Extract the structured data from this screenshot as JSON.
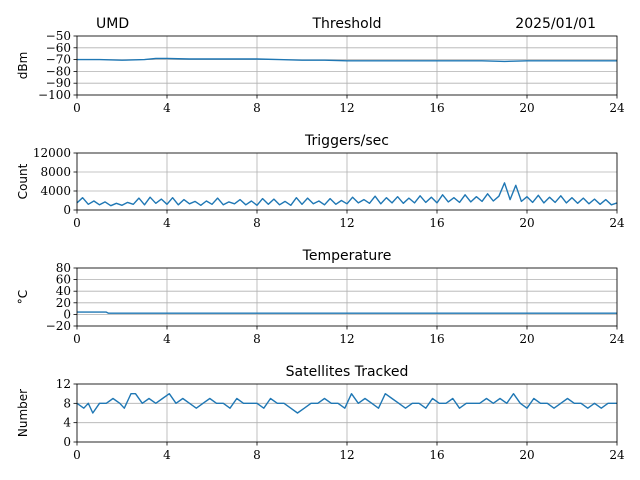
{
  "header": {
    "left": "UMD",
    "right": "2025/01/01"
  },
  "colors": {
    "series": "#1f77b4",
    "grid": "#b0b0b0"
  },
  "chart_data": [
    {
      "type": "line",
      "title": "Threshold",
      "ylabel": "dBm",
      "xlim": [
        0,
        24
      ],
      "ylim": [
        -100,
        -50
      ],
      "xticks": [
        0,
        4,
        8,
        12,
        16,
        20,
        24
      ],
      "yticks": [
        -100,
        -90,
        -80,
        -70,
        -60,
        -50
      ],
      "ytick_labels": [
        "−100",
        "−90",
        "−80",
        "−70",
        "−60",
        "−50"
      ],
      "grid": true,
      "series": [
        {
          "x": [
            0,
            1,
            2,
            3,
            3.5,
            4,
            5,
            6,
            7,
            8,
            9,
            10,
            11,
            12,
            13,
            14,
            15,
            16,
            17,
            18,
            19,
            20,
            21,
            22,
            23,
            24
          ],
          "values": [
            -70,
            -70,
            -70.5,
            -70,
            -69,
            -69,
            -69.5,
            -69.5,
            -69.5,
            -69.5,
            -70,
            -70.5,
            -70.5,
            -71,
            -71,
            -71,
            -71,
            -71,
            -71,
            -71,
            -71.5,
            -71,
            -71,
            -71,
            -71,
            -71
          ]
        }
      ]
    },
    {
      "type": "line",
      "title": "Triggers/sec",
      "ylabel": "Count",
      "xlim": [
        0,
        24
      ],
      "ylim": [
        0,
        12000
      ],
      "xticks": [
        0,
        4,
        8,
        12,
        16,
        20,
        24
      ],
      "yticks": [
        0,
        4000,
        8000,
        12000
      ],
      "ytick_labels": [
        "0",
        "4000",
        "8000",
        "12000"
      ],
      "grid": true,
      "series": [
        {
          "x": [
            0,
            0.25,
            0.5,
            0.75,
            1,
            1.25,
            1.5,
            1.75,
            2,
            2.25,
            2.5,
            2.75,
            3,
            3.25,
            3.5,
            3.75,
            4,
            4.25,
            4.5,
            4.75,
            5,
            5.25,
            5.5,
            5.75,
            6,
            6.25,
            6.5,
            6.75,
            7,
            7.25,
            7.5,
            7.75,
            8,
            8.25,
            8.5,
            8.75,
            9,
            9.25,
            9.5,
            9.75,
            10,
            10.25,
            10.5,
            10.75,
            11,
            11.25,
            11.5,
            11.75,
            12,
            12.25,
            12.5,
            12.75,
            13,
            13.25,
            13.5,
            13.75,
            14,
            14.25,
            14.5,
            14.75,
            15,
            15.25,
            15.5,
            15.75,
            16,
            16.25,
            16.5,
            16.75,
            17,
            17.25,
            17.5,
            17.75,
            18,
            18.25,
            18.5,
            18.75,
            19,
            19.25,
            19.5,
            19.75,
            20,
            20.25,
            20.5,
            20.75,
            21,
            21.25,
            21.5,
            21.75,
            22,
            22.25,
            22.5,
            22.75,
            23,
            23.25,
            23.5,
            23.75,
            24
          ],
          "values": [
            1500,
            2600,
            1200,
            1900,
            1100,
            1700,
            900,
            1400,
            1000,
            1600,
            1200,
            2500,
            1100,
            2700,
            1400,
            2300,
            1200,
            2600,
            1100,
            2200,
            1300,
            1800,
            1000,
            1900,
            1200,
            2500,
            1100,
            1700,
            1300,
            2200,
            1100,
            1900,
            1000,
            2400,
            1200,
            2300,
            1100,
            1800,
            1000,
            2600,
            1200,
            2500,
            1300,
            1900,
            1100,
            2400,
            1200,
            2000,
            1300,
            2700,
            1500,
            2200,
            1400,
            2900,
            1300,
            2600,
            1500,
            2800,
            1400,
            2500,
            1500,
            3000,
            1600,
            2700,
            1500,
            3200,
            1700,
            2600,
            1600,
            3200,
            1700,
            2800,
            1800,
            3400,
            1900,
            2900,
            5700,
            2200,
            5200,
            1800,
            2800,
            1600,
            3100,
            1500,
            2700,
            1600,
            3000,
            1500,
            2600,
            1400,
            2500,
            1300,
            2300,
            1200,
            2200,
            1100,
            1500
          ]
        }
      ]
    },
    {
      "type": "line",
      "title": "Temperature",
      "ylabel": "°C",
      "xlim": [
        0,
        24
      ],
      "ylim": [
        -20,
        80
      ],
      "xticks": [
        0,
        4,
        8,
        12,
        16,
        20,
        24
      ],
      "yticks": [
        -20,
        0,
        20,
        40,
        60,
        80
      ],
      "ytick_labels": [
        "−20",
        "0",
        "20",
        "40",
        "60",
        "80"
      ],
      "grid": true,
      "series": [
        {
          "x": [
            0,
            1.3,
            1.4,
            24
          ],
          "values": [
            4,
            4,
            2,
            2
          ]
        }
      ]
    },
    {
      "type": "line",
      "title": "Satellites Tracked",
      "ylabel": "Number",
      "xlim": [
        0,
        24
      ],
      "ylim": [
        0,
        12
      ],
      "xticks": [
        0,
        4,
        8,
        12,
        16,
        20,
        24
      ],
      "yticks": [
        0,
        4,
        8,
        12
      ],
      "ytick_labels": [
        "0",
        "4",
        "8",
        "12"
      ],
      "grid": true,
      "series": [
        {
          "x": [
            0,
            0.3,
            0.5,
            0.7,
            1.0,
            1.3,
            1.6,
            1.9,
            2.1,
            2.4,
            2.6,
            2.9,
            3.2,
            3.5,
            3.8,
            4.1,
            4.4,
            4.7,
            5.0,
            5.3,
            5.6,
            5.9,
            6.2,
            6.5,
            6.8,
            7.1,
            7.4,
            7.7,
            8.0,
            8.3,
            8.6,
            8.9,
            9.2,
            9.5,
            9.8,
            10.1,
            10.4,
            10.7,
            11.0,
            11.3,
            11.6,
            11.9,
            12.2,
            12.5,
            12.8,
            13.1,
            13.4,
            13.7,
            14.0,
            14.3,
            14.6,
            14.9,
            15.2,
            15.5,
            15.8,
            16.1,
            16.4,
            16.7,
            17.0,
            17.3,
            17.6,
            17.9,
            18.2,
            18.5,
            18.8,
            19.1,
            19.4,
            19.7,
            20.0,
            20.3,
            20.6,
            20.9,
            21.2,
            21.5,
            21.8,
            22.1,
            22.4,
            22.7,
            23.0,
            23.3,
            23.6,
            24
          ],
          "values": [
            8,
            7,
            8,
            6,
            8,
            8,
            9,
            8,
            7,
            10,
            10,
            8,
            9,
            8,
            9,
            10,
            8,
            9,
            8,
            7,
            8,
            9,
            8,
            8,
            7,
            9,
            8,
            8,
            8,
            7,
            9,
            8,
            8,
            7,
            6,
            7,
            8,
            8,
            9,
            8,
            8,
            7,
            10,
            8,
            9,
            8,
            7,
            10,
            9,
            8,
            7,
            8,
            8,
            7,
            9,
            8,
            8,
            9,
            7,
            8,
            8,
            8,
            9,
            8,
            9,
            8,
            10,
            8,
            7,
            9,
            8,
            8,
            7,
            8,
            9,
            8,
            8,
            7,
            8,
            7,
            8,
            8
          ]
        }
      ]
    }
  ]
}
